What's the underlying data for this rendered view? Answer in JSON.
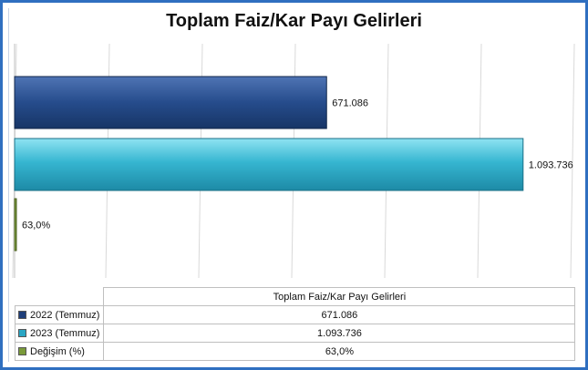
{
  "chart_data": {
    "type": "bar",
    "orientation": "horizontal",
    "title": "Toplam Faiz/Kar Payı Gelirleri",
    "series": [
      {
        "name": "2022 (Temmuz)",
        "value": 671086,
        "label": "671.086",
        "color": "#1f3f7a"
      },
      {
        "name": "2023 (Temmuz)",
        "value": 1093736,
        "label": "1.093.736",
        "color": "#2aa6c4"
      },
      {
        "name": "Değişim (%)",
        "value": 63.0,
        "label": "63,0%",
        "color": "#7a9a3a"
      }
    ],
    "xlim": [
      0,
      1200000
    ],
    "grid": true,
    "table": {
      "header": "Toplam Faiz/Kar Payı Gelirleri",
      "rows": [
        {
          "label": "2022 (Temmuz)",
          "value": "671.086"
        },
        {
          "label": "2023 (Temmuz)",
          "value": "1.093.736"
        },
        {
          "label": "Değişim (%)",
          "value": "63,0%"
        }
      ]
    }
  }
}
